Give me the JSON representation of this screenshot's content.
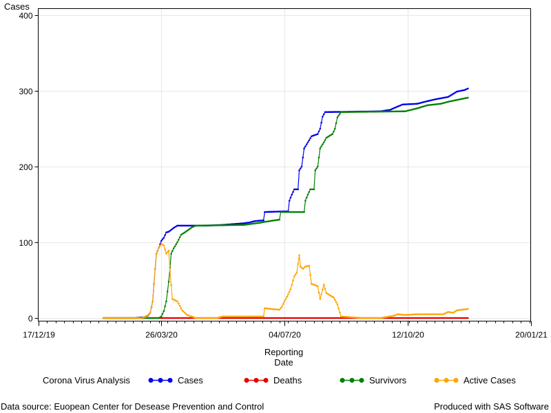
{
  "chart_data": {
    "type": "line",
    "ylabel": "Cases",
    "xlabel_lines": [
      "Reporting",
      "Date"
    ],
    "ylim": [
      0,
      400
    ],
    "yticks": [
      0,
      100,
      200,
      300,
      400
    ],
    "xlim": [
      "2019-12-17",
      "2021-01-20"
    ],
    "xticks": [
      "2019-12-17",
      "2020-03-26",
      "2020-07-04",
      "2020-10-12",
      "2021-01-20"
    ],
    "xtick_labels": [
      "17/12/19",
      "26/03/20",
      "04/07/20",
      "12/10/20",
      "20/01/21"
    ],
    "grid": true,
    "legend_position": "bottom",
    "legend_title": "Corona Virus Analysis",
    "series": [
      {
        "name": "Cases",
        "color": "#0000e6",
        "points": [
          [
            "2020-02-08",
            0
          ],
          [
            "2020-03-04",
            0
          ],
          [
            "2020-03-12",
            1
          ],
          [
            "2020-03-15",
            3
          ],
          [
            "2020-03-17",
            7
          ],
          [
            "2020-03-19",
            22
          ],
          [
            "2020-03-20",
            45
          ],
          [
            "2020-03-22",
            85
          ],
          [
            "2020-03-24",
            93
          ],
          [
            "2020-03-26",
            102
          ],
          [
            "2020-03-28",
            106
          ],
          [
            "2020-03-30",
            113
          ],
          [
            "2020-04-01",
            114
          ],
          [
            "2020-04-05",
            119
          ],
          [
            "2020-04-08",
            122
          ],
          [
            "2020-05-01",
            122
          ],
          [
            "2020-05-15",
            123
          ],
          [
            "2020-05-31",
            125
          ],
          [
            "2020-06-05",
            126
          ],
          [
            "2020-06-10",
            128
          ],
          [
            "2020-06-17",
            129
          ],
          [
            "2020-06-18",
            140
          ],
          [
            "2020-07-07",
            141
          ],
          [
            "2020-07-08",
            155
          ],
          [
            "2020-07-10",
            163
          ],
          [
            "2020-07-12",
            170
          ],
          [
            "2020-07-15",
            170
          ],
          [
            "2020-07-16",
            195
          ],
          [
            "2020-07-18",
            200
          ],
          [
            "2020-07-20",
            224
          ],
          [
            "2020-07-23",
            232
          ],
          [
            "2020-07-26",
            240
          ],
          [
            "2020-07-31",
            243
          ],
          [
            "2020-08-02",
            250
          ],
          [
            "2020-08-04",
            266
          ],
          [
            "2020-08-06",
            272
          ],
          [
            "2020-09-20",
            273
          ],
          [
            "2020-09-28",
            275
          ],
          [
            "2020-10-02",
            278
          ],
          [
            "2020-10-08",
            282
          ],
          [
            "2020-10-20",
            283
          ],
          [
            "2020-10-27",
            286
          ],
          [
            "2020-11-04",
            289
          ],
          [
            "2020-11-14",
            292
          ],
          [
            "2020-11-21",
            299
          ],
          [
            "2020-11-27",
            301
          ],
          [
            "2020-11-30",
            303
          ]
        ]
      },
      {
        "name": "Deaths",
        "color": "#e60000",
        "points": [
          [
            "2020-02-08",
            0
          ],
          [
            "2020-03-20",
            0
          ],
          [
            "2020-04-20",
            0
          ],
          [
            "2020-06-15",
            0
          ],
          [
            "2020-09-01",
            0
          ],
          [
            "2020-11-30",
            0
          ]
        ]
      },
      {
        "name": "Survivors",
        "color": "#008000",
        "points": [
          [
            "2020-02-08",
            0
          ],
          [
            "2020-03-24",
            0
          ],
          [
            "2020-03-26",
            2
          ],
          [
            "2020-03-28",
            9
          ],
          [
            "2020-03-30",
            22
          ],
          [
            "2020-04-01",
            48
          ],
          [
            "2020-04-03",
            85
          ],
          [
            "2020-04-05",
            92
          ],
          [
            "2020-04-08",
            100
          ],
          [
            "2020-04-11",
            110
          ],
          [
            "2020-04-14",
            113
          ],
          [
            "2020-04-20",
            120
          ],
          [
            "2020-04-23",
            122
          ],
          [
            "2020-06-01",
            123
          ],
          [
            "2020-06-15",
            126
          ],
          [
            "2020-06-18",
            127
          ],
          [
            "2020-06-30",
            130
          ],
          [
            "2020-07-01",
            140
          ],
          [
            "2020-07-20",
            140
          ],
          [
            "2020-07-21",
            155
          ],
          [
            "2020-07-23",
            163
          ],
          [
            "2020-07-25",
            170
          ],
          [
            "2020-07-28",
            170
          ],
          [
            "2020-07-29",
            195
          ],
          [
            "2020-07-31",
            200
          ],
          [
            "2020-08-02",
            224
          ],
          [
            "2020-08-05",
            232
          ],
          [
            "2020-08-07",
            238
          ],
          [
            "2020-08-12",
            243
          ],
          [
            "2020-08-14",
            250
          ],
          [
            "2020-08-16",
            265
          ],
          [
            "2020-08-19",
            272
          ],
          [
            "2020-10-10",
            273
          ],
          [
            "2020-10-20",
            277
          ],
          [
            "2020-10-28",
            281
          ],
          [
            "2020-11-08",
            283
          ],
          [
            "2020-11-15",
            286
          ],
          [
            "2020-11-21",
            288
          ],
          [
            "2020-11-30",
            291
          ]
        ]
      },
      {
        "name": "Active Cases",
        "color": "#ffa500",
        "points": [
          [
            "2020-02-08",
            0
          ],
          [
            "2020-03-10",
            0
          ],
          [
            "2020-03-14",
            2
          ],
          [
            "2020-03-17",
            7
          ],
          [
            "2020-03-19",
            22
          ],
          [
            "2020-03-20",
            45
          ],
          [
            "2020-03-22",
            85
          ],
          [
            "2020-03-24",
            93
          ],
          [
            "2020-03-26",
            98
          ],
          [
            "2020-03-28",
            96
          ],
          [
            "2020-03-30",
            85
          ],
          [
            "2020-04-01",
            89
          ],
          [
            "2020-04-02",
            62
          ],
          [
            "2020-04-04",
            25
          ],
          [
            "2020-04-08",
            22
          ],
          [
            "2020-04-12",
            10
          ],
          [
            "2020-04-16",
            4
          ],
          [
            "2020-04-23",
            0
          ],
          [
            "2020-05-10",
            0
          ],
          [
            "2020-05-15",
            2
          ],
          [
            "2020-05-25",
            2
          ],
          [
            "2020-06-05",
            2
          ],
          [
            "2020-06-17",
            2
          ],
          [
            "2020-06-18",
            13
          ],
          [
            "2020-06-23",
            12
          ],
          [
            "2020-06-30",
            11
          ],
          [
            "2020-07-02",
            15
          ],
          [
            "2020-07-04",
            22
          ],
          [
            "2020-07-06",
            28
          ],
          [
            "2020-07-09",
            38
          ],
          [
            "2020-07-12",
            55
          ],
          [
            "2020-07-14",
            60
          ],
          [
            "2020-07-16",
            83
          ],
          [
            "2020-07-17",
            68
          ],
          [
            "2020-07-19",
            65
          ],
          [
            "2020-07-21",
            68
          ],
          [
            "2020-07-24",
            69
          ],
          [
            "2020-07-26",
            45
          ],
          [
            "2020-07-28",
            44
          ],
          [
            "2020-07-31",
            42
          ],
          [
            "2020-08-02",
            25
          ],
          [
            "2020-08-05",
            44
          ],
          [
            "2020-08-07",
            33
          ],
          [
            "2020-08-10",
            30
          ],
          [
            "2020-08-13",
            27
          ],
          [
            "2020-08-16",
            18
          ],
          [
            "2020-08-19",
            2
          ],
          [
            "2020-09-05",
            0
          ],
          [
            "2020-09-20",
            0
          ],
          [
            "2020-10-01",
            3
          ],
          [
            "2020-10-04",
            5
          ],
          [
            "2020-10-10",
            4
          ],
          [
            "2020-10-20",
            5
          ],
          [
            "2020-11-01",
            5
          ],
          [
            "2020-11-10",
            5
          ],
          [
            "2020-11-14",
            8
          ],
          [
            "2020-11-18",
            7
          ],
          [
            "2020-11-21",
            10
          ],
          [
            "2020-11-25",
            11
          ],
          [
            "2020-11-30",
            12
          ]
        ]
      }
    ]
  },
  "footer": {
    "source": "Data source: Euopean Center for Desease Prevention and Control",
    "produced": "Produced with SAS Software"
  }
}
